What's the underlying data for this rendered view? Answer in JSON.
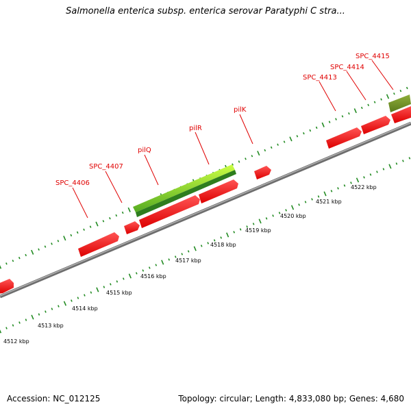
{
  "title": "Salmonella enterica subsp. enterica serovar Paratyphi C stra...",
  "footer": {
    "accession": "Accession: NC_012125",
    "summary": "Topology: circular; Length: 4,833,080 bp; Genes: 4,680"
  },
  "colors": {
    "backbone": "#8c8c8c",
    "gene": "#ee1111",
    "gene_light": "#ff5555",
    "highlight_gene": "#66bb22",
    "highlight_gene_light": "#ccff44",
    "olive_gene": "#6b8e23",
    "tick": "#228b22",
    "label": "#e00000"
  },
  "scale": {
    "unit": "kbp",
    "labels": [
      "4512 kbp",
      "4513 kbp",
      "4514 kbp",
      "4515 kbp",
      "4516 kbp",
      "4517 kbp",
      "4518 kbp",
      "4519 kbp",
      "4520 kbp",
      "4521 kbp",
      "4522 kbp"
    ]
  },
  "gene_labels": [
    "SPC_4406",
    "SPC_4407",
    "pilQ",
    "pilR",
    "pilK",
    "SPC_4413",
    "SPC_4414",
    "SPC_4415"
  ]
}
